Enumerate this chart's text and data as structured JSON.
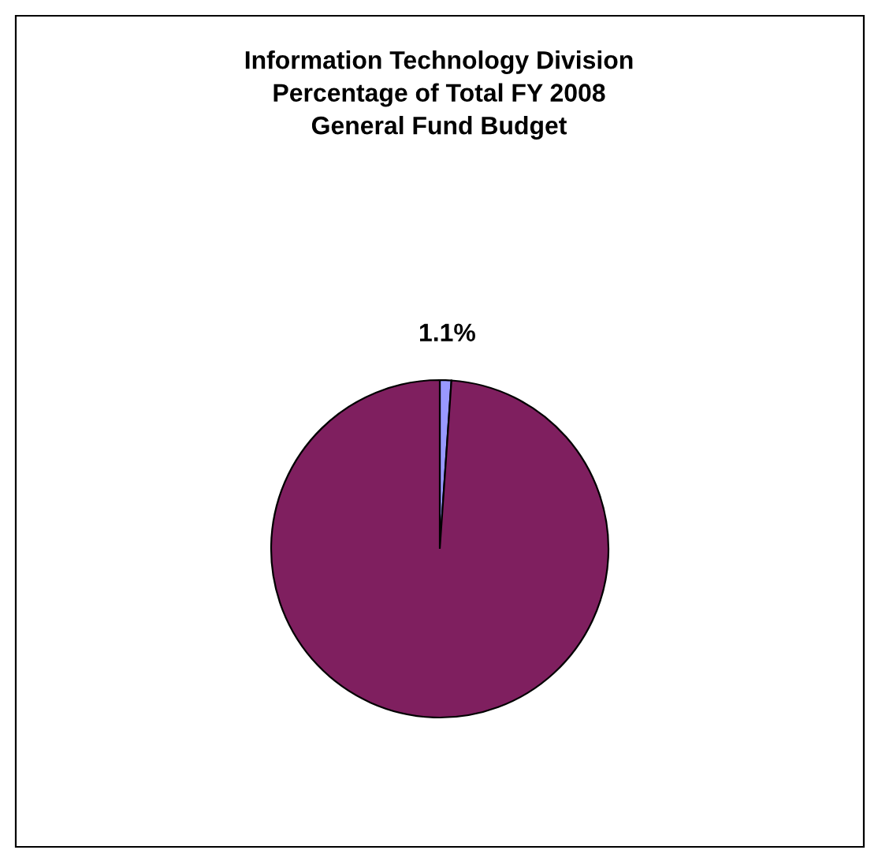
{
  "chart_data": {
    "type": "pie",
    "title": "Information Technology Division\nPercentage of Total FY 2008\nGeneral Fund Budget",
    "categories": [
      null,
      null
    ],
    "values": [
      1.1,
      98.9
    ],
    "colors": [
      "#9999ff",
      "#7f1f5f"
    ],
    "value_labels": [
      "1.1%",
      null
    ]
  }
}
